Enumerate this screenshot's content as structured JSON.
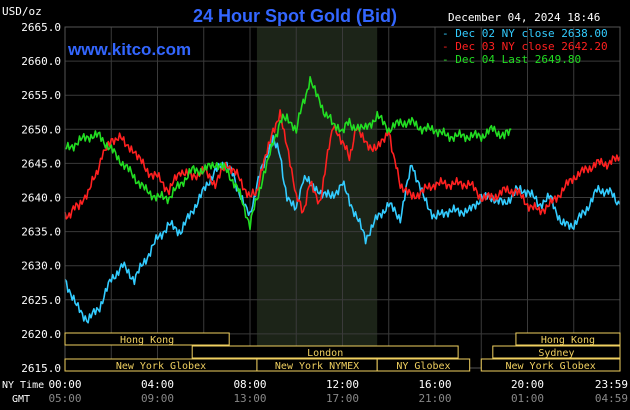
{
  "header": {
    "units": "USD/oz",
    "title": "24 Hour Spot Gold (Bid)",
    "date": "December 04, 2024 18:46",
    "brand": "www.kitco.com"
  },
  "chart_data": {
    "type": "line",
    "title": "24 Hour Spot Gold (Bid)",
    "ylabel": "USD/oz",
    "ylim": [
      2615,
      2665
    ],
    "y_ticks": [
      "2665.0",
      "2660.0",
      "2655.0",
      "2650.0",
      "2645.0",
      "2640.0",
      "2635.0",
      "2630.0",
      "2625.0",
      "2620.0",
      "2615.0"
    ],
    "x_ticks_ny": [
      "00:00",
      "04:00",
      "08:00",
      "12:00",
      "16:00",
      "20:00",
      "23:59"
    ],
    "x_ticks_gmt": [
      "05:00",
      "09:00",
      "13:00",
      "17:00",
      "21:00",
      "01:00",
      "04:59"
    ],
    "x_labels": {
      "ny": "NY Time",
      "gmt": "GMT"
    },
    "grid": true,
    "legend_position": "top-right",
    "highlight_range_hours": [
      8.3,
      13.5
    ],
    "series": [
      {
        "name": "Dec 02 NY close 2638.00",
        "color": "#33ccff",
        "x": [
          0,
          0.5,
          1,
          1.5,
          2,
          2.5,
          3,
          3.5,
          4,
          4.5,
          5,
          5.5,
          6,
          6.5,
          7,
          7.3,
          7.6,
          8,
          8.3,
          8.6,
          9,
          9.3,
          9.6,
          10,
          10.3,
          10.6,
          11,
          11.5,
          12,
          12.5,
          13,
          13.5,
          14,
          14.5,
          15,
          15.5,
          16,
          16.5,
          17,
          17.5,
          18,
          18.5,
          19,
          19.5,
          20,
          20.5,
          21,
          21.5,
          22,
          22.5,
          23,
          23.5,
          23.99
        ],
        "y": [
          2628,
          2624,
          2622,
          2624,
          2628,
          2630,
          2628,
          2631,
          2634,
          2636,
          2635,
          2638,
          2641,
          2644,
          2645,
          2643,
          2640,
          2637,
          2642,
          2645,
          2649,
          2646,
          2640,
          2638,
          2643,
          2642,
          2641,
          2640,
          2642,
          2638,
          2634,
          2637,
          2639,
          2637,
          2645,
          2640,
          2637,
          2638,
          2638,
          2638,
          2640,
          2640,
          2639,
          2641,
          2641,
          2639,
          2640,
          2636,
          2636,
          2638,
          2641,
          2641,
          2639
        ]
      },
      {
        "name": "Dec 03 NY close 2642.20",
        "color": "#ff2020",
        "x": [
          0,
          0.3,
          0.6,
          1,
          1.3,
          1.6,
          2,
          2.3,
          2.6,
          3,
          3.5,
          4,
          4.5,
          5,
          5.5,
          6,
          6.5,
          7,
          7.5,
          8,
          8.3,
          8.6,
          9,
          9.3,
          9.6,
          10,
          10.3,
          10.6,
          11,
          11.3,
          11.6,
          12,
          12.3,
          12.6,
          13,
          13.5,
          14,
          14.2,
          14.5,
          15,
          15.5,
          16,
          16.5,
          17,
          17.5,
          18,
          18.5,
          19,
          19.5,
          20,
          20.5,
          21,
          21.5,
          22,
          22.5,
          23,
          23.5,
          23.99
        ],
        "y": [
          2637,
          2638,
          2639,
          2641,
          2643,
          2646,
          2648,
          2649,
          2648,
          2647,
          2644,
          2643,
          2641,
          2644,
          2643,
          2644,
          2642,
          2645,
          2643,
          2640,
          2641,
          2645,
          2650,
          2652,
          2648,
          2640,
          2638,
          2642,
          2639,
          2645,
          2651,
          2648,
          2646,
          2650,
          2648,
          2647,
          2650,
          2646,
          2642,
          2640,
          2641,
          2642,
          2642,
          2642,
          2642,
          2640,
          2640,
          2641,
          2641,
          2639,
          2638,
          2639,
          2641,
          2643,
          2644,
          2645,
          2645,
          2646
        ]
      },
      {
        "name": "Dec 04 Last 2649.80",
        "color": "#22dd22",
        "x": [
          0,
          0.5,
          1,
          1.5,
          2,
          2.5,
          3,
          3.5,
          4,
          4.5,
          5,
          5.5,
          6,
          6.5,
          7,
          7.5,
          8,
          8.3,
          8.6,
          9,
          9.3,
          9.6,
          10,
          10.3,
          10.6,
          11,
          11.3,
          11.6,
          12,
          12.3,
          12.6,
          13,
          13.5,
          14,
          14.5,
          15,
          15.5,
          16,
          16.5,
          17,
          17.5,
          18,
          18.5,
          19,
          19.3
        ],
        "y": [
          2647,
          2648,
          2649,
          2649,
          2647,
          2645,
          2643,
          2641,
          2640,
          2640,
          2642,
          2644,
          2644,
          2645,
          2644,
          2641,
          2636,
          2640,
          2643,
          2648,
          2651,
          2652,
          2650,
          2654,
          2657,
          2654,
          2652,
          2651,
          2650,
          2651,
          2650,
          2650,
          2652,
          2650,
          2651,
          2651,
          2650,
          2650,
          2649,
          2649,
          2649,
          2649,
          2650,
          2649,
          2650
        ]
      }
    ],
    "sessions": [
      {
        "label": "Hong Kong",
        "start": 0,
        "end": 7.1,
        "row": 1
      },
      {
        "label": "Hong Kong",
        "start": 19.5,
        "end": 24,
        "row": 1
      },
      {
        "label": "London",
        "start": 5.5,
        "end": 17,
        "row": 2
      },
      {
        "label": "Sydney",
        "start": 18.5,
        "end": 24,
        "row": 2
      },
      {
        "label": "New York Globex",
        "start": 0,
        "end": 8.3,
        "row": 3
      },
      {
        "label": "New York NYMEX",
        "start": 8.3,
        "end": 13.5,
        "row": 3
      },
      {
        "label": "NY Globex",
        "start": 13.5,
        "end": 17.5,
        "row": 3
      },
      {
        "label": "New York Globex",
        "start": 18,
        "end": 24,
        "row": 3
      }
    ]
  },
  "colors": {
    "background": "#000000",
    "plot_background": "#000000",
    "highlight": "#1c2418",
    "grid": "#3a3a3a",
    "title": "#3366ff",
    "brand": "#3366ff",
    "session_box": "#f0d060"
  }
}
